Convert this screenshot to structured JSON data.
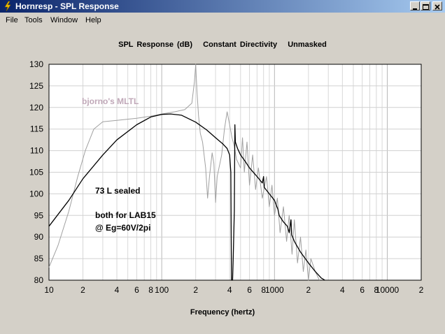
{
  "window": {
    "title": "Hornresp - SPL Response"
  },
  "menu": {
    "items": [
      "File",
      "Tools",
      "Window",
      "Help"
    ]
  },
  "chart_data": {
    "type": "line",
    "title": "SPL Response (dB)   Constant Directivity   Unmasked",
    "xlabel": "Frequency (hertz)",
    "ylabel": "",
    "xscale": "log",
    "xlim": [
      10,
      20000
    ],
    "ylim": [
      80,
      130
    ],
    "grid": true,
    "y_ticks": [
      "130",
      "125",
      "120",
      "115",
      "110",
      "105",
      "100",
      "95",
      "90",
      "85",
      "80"
    ],
    "x_ticks": [
      {
        "v": 10,
        "t": "10"
      },
      {
        "v": 20,
        "t": "2"
      },
      {
        "v": 40,
        "t": "4"
      },
      {
        "v": 60,
        "t": "6"
      },
      {
        "v": 80,
        "t": "8"
      },
      {
        "v": 100,
        "t": "100"
      },
      {
        "v": 200,
        "t": "2"
      },
      {
        "v": 400,
        "t": "4"
      },
      {
        "v": 600,
        "t": "6"
      },
      {
        "v": 800,
        "t": "8"
      },
      {
        "v": 1000,
        "t": "1000"
      },
      {
        "v": 2000,
        "t": "2"
      },
      {
        "v": 4000,
        "t": "4"
      },
      {
        "v": 6000,
        "t": "6"
      },
      {
        "v": 8000,
        "t": "8"
      },
      {
        "v": 10000,
        "t": "10000"
      },
      {
        "v": 20000,
        "t": "2"
      }
    ],
    "annotations": [
      "bjorno's MLTL",
      "73 L sealed",
      "both for LAB15",
      "@ Eg=60V/2pi"
    ],
    "series": [
      {
        "color": "#a0a0a0",
        "points": [
          [
            10,
            83
          ],
          [
            12,
            88
          ],
          [
            15,
            96
          ],
          [
            18,
            104
          ],
          [
            21,
            110
          ],
          [
            25,
            115
          ],
          [
            30,
            116.7
          ],
          [
            40,
            117
          ],
          [
            60,
            117.5
          ],
          [
            80,
            118
          ],
          [
            100,
            118.5
          ],
          [
            130,
            119
          ],
          [
            160,
            119.5
          ],
          [
            185,
            121
          ],
          [
            195,
            126
          ],
          [
            200,
            130
          ],
          [
            205,
            124
          ],
          [
            212,
            118
          ],
          [
            220,
            114
          ],
          [
            230,
            112
          ],
          [
            245,
            106
          ],
          [
            255,
            99
          ],
          [
            265,
            104
          ],
          [
            280,
            109.5
          ],
          [
            290,
            107
          ],
          [
            300,
            98
          ],
          [
            310,
            104
          ],
          [
            340,
            109
          ],
          [
            360,
            115
          ],
          [
            380,
            119
          ],
          [
            400,
            116
          ],
          [
            420,
            113
          ],
          [
            440,
            111
          ],
          [
            460,
            108
          ],
          [
            500,
            106
          ],
          [
            520,
            113
          ],
          [
            540,
            105
          ],
          [
            570,
            112
          ],
          [
            600,
            102
          ],
          [
            640,
            109
          ],
          [
            680,
            101
          ],
          [
            720,
            106
          ],
          [
            780,
            99
          ],
          [
            850,
            104
          ],
          [
            900,
            97
          ],
          [
            950,
            102
          ],
          [
            1000,
            95
          ],
          [
            1060,
            99
          ],
          [
            1120,
            91
          ],
          [
            1200,
            97
          ],
          [
            1280,
            89
          ],
          [
            1350,
            95
          ],
          [
            1430,
            86
          ],
          [
            1500,
            94
          ],
          [
            1600,
            84
          ],
          [
            1700,
            90
          ],
          [
            1800,
            82
          ],
          [
            1900,
            87
          ],
          [
            2000,
            80
          ],
          [
            2100,
            85
          ],
          [
            2300,
            82
          ],
          [
            2500,
            80
          ]
        ]
      },
      {
        "color": "#000000",
        "points": [
          [
            10,
            92.5
          ],
          [
            15,
            98.5
          ],
          [
            20,
            103.5
          ],
          [
            30,
            109
          ],
          [
            40,
            112.5
          ],
          [
            60,
            116
          ],
          [
            80,
            117.8
          ],
          [
            100,
            118.4
          ],
          [
            120,
            118.5
          ],
          [
            150,
            118.2
          ],
          [
            200,
            116.6
          ],
          [
            250,
            114.8
          ],
          [
            300,
            113
          ],
          [
            350,
            111.5
          ],
          [
            380,
            110.5
          ],
          [
            400,
            109
          ],
          [
            410,
            105
          ],
          [
            415,
            80
          ],
          [
            420,
            80
          ],
          [
            425,
            80
          ],
          [
            430,
            85
          ],
          [
            440,
            96
          ],
          [
            445,
            116
          ],
          [
            450,
            112
          ],
          [
            470,
            110.5
          ],
          [
            500,
            109
          ],
          [
            550,
            107.5
          ],
          [
            600,
            106
          ],
          [
            700,
            104
          ],
          [
            780,
            102.5
          ],
          [
            800,
            104
          ],
          [
            810,
            101.5
          ],
          [
            900,
            100
          ],
          [
            1000,
            98.5
          ],
          [
            1050,
            97
          ],
          [
            1070,
            96.5
          ],
          [
            1100,
            95
          ],
          [
            1200,
            93.5
          ],
          [
            1300,
            92.5
          ],
          [
            1350,
            91
          ],
          [
            1400,
            94
          ],
          [
            1420,
            90.5
          ],
          [
            1500,
            89
          ],
          [
            1700,
            86.5
          ],
          [
            2000,
            84
          ],
          [
            2300,
            82
          ],
          [
            2600,
            80.5
          ],
          [
            2800,
            80
          ]
        ]
      }
    ]
  }
}
